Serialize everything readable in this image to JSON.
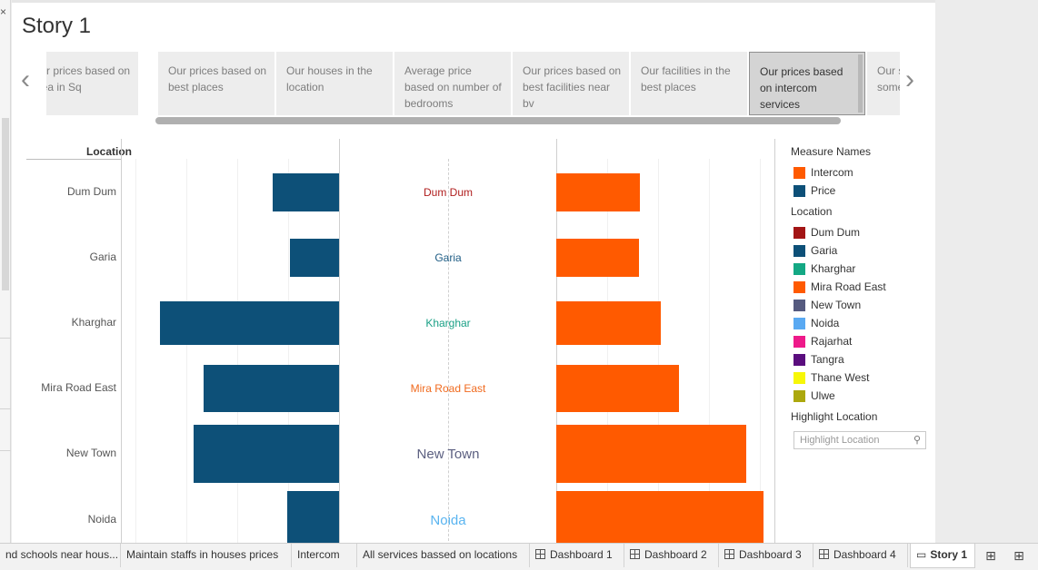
{
  "story": {
    "title": "Story 1"
  },
  "story_points": [
    {
      "label": "Our prices based on area in Sq"
    },
    {
      "label": "Our prices based on best places"
    },
    {
      "label": "Our houses in the location"
    },
    {
      "label": "Average price based on number of bedrooms"
    },
    {
      "label": "Our prices based on best facilities near bv"
    },
    {
      "label": "Our facilities in the best places"
    },
    {
      "label": "Our prices based on intercom services"
    },
    {
      "label": "Our services on some places"
    }
  ],
  "nav": {
    "prev": "‹",
    "next": "›"
  },
  "window": {
    "close_glyph": "×"
  },
  "chart_data": {
    "type": "bar",
    "column_header": "Location",
    "categories": [
      "Dum Dum",
      "Garia",
      "Kharghar",
      "Mira Road East",
      "New Town",
      "Noida"
    ],
    "series": [
      {
        "name": "Price",
        "color": "#0d5078",
        "values": [
          73,
          54,
          197,
          149,
          160,
          57
        ]
      },
      {
        "name": "Intercom",
        "color": "#ff5a00",
        "values": [
          92,
          91,
          115,
          135,
          209,
          228
        ]
      }
    ],
    "label_colors": [
      "#b01e1e",
      "#1f5d85",
      "#1aa086",
      "#f06a1e",
      "#5b5f80",
      "#59b4f0"
    ],
    "label_sizes": [
      12,
      12,
      12,
      12,
      15,
      15
    ]
  },
  "legend": {
    "measure_title": "Measure Names",
    "measures": [
      {
        "label": "Intercom",
        "color": "#ff5a00"
      },
      {
        "label": "Price",
        "color": "#0d5078"
      }
    ],
    "location_title": "Location",
    "locations": [
      {
        "label": "Dum Dum",
        "color": "#a31515"
      },
      {
        "label": "Garia",
        "color": "#0d5078"
      },
      {
        "label": "Kharghar",
        "color": "#14a884"
      },
      {
        "label": "Mira Road East",
        "color": "#ff5a00"
      },
      {
        "label": "New Town",
        "color": "#555a7f"
      },
      {
        "label": "Noida",
        "color": "#59a9f2"
      },
      {
        "label": "Rajarhat",
        "color": "#ee1a8a"
      },
      {
        "label": "Tangra",
        "color": "#5a0d7e"
      },
      {
        "label": "Thane West",
        "color": "#f7f707"
      },
      {
        "label": "Ulwe",
        "color": "#aca80d"
      }
    ],
    "highlight_title": "Highlight Location",
    "highlight_placeholder": "Highlight Location"
  },
  "tabs": [
    {
      "label": "nd schools near hous..."
    },
    {
      "label": "Maintain staffs in houses prices"
    },
    {
      "label": "Intercom"
    },
    {
      "label": "All services bassed on locations"
    },
    {
      "label": "Dashboard 1"
    },
    {
      "label": "Dashboard 2"
    },
    {
      "label": "Dashboard 3"
    },
    {
      "label": "Dashboard 4"
    },
    {
      "label": "Story 1"
    }
  ],
  "tools": {
    "new_worksheet": "⊞",
    "new_dashboard": "⊞"
  }
}
